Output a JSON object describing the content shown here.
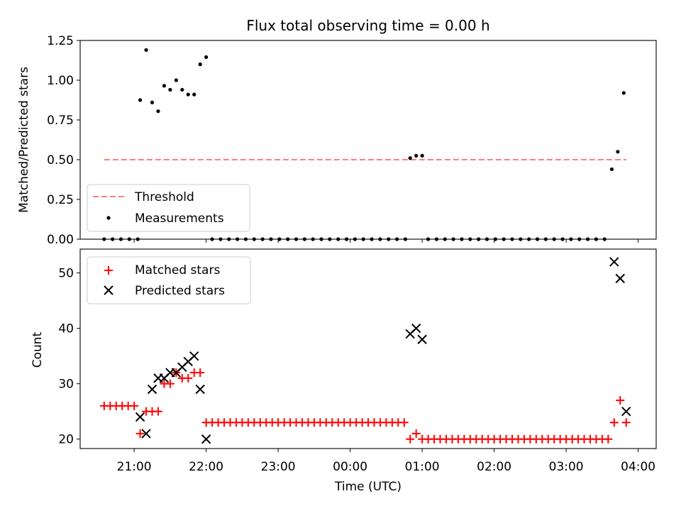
{
  "chart_data": [
    {
      "type": "scatter",
      "title": "Flux total observing time = 0.00 h",
      "ylabel": "Matched/Predicted stars",
      "xlabel": "",
      "ylim": [
        0,
        1.25
      ],
      "yticks": [
        "0.00",
        "0.25",
        "0.50",
        "0.75",
        "1.00",
        "1.25"
      ],
      "grid": false,
      "legend_position": "lower-left",
      "threshold": {
        "name": "Threshold",
        "value": 0.5,
        "x_start": "20:35",
        "x_end": "03:50",
        "color": "#ff7f7f"
      },
      "series": [
        {
          "name": "Measurements",
          "marker": "dot",
          "color": "#000000",
          "points": [
            [
              "20:35",
              0
            ],
            [
              "20:42",
              0
            ],
            [
              "20:49",
              0
            ],
            [
              "20:56",
              0
            ],
            [
              "21:03",
              0
            ],
            [
              "21:05",
              0.875
            ],
            [
              "21:10",
              1.19
            ],
            [
              "21:15",
              0.86
            ],
            [
              "21:20",
              0.805
            ],
            [
              "21:25",
              0.965
            ],
            [
              "21:30",
              0.94
            ],
            [
              "21:35",
              1.0
            ],
            [
              "21:40",
              0.94
            ],
            [
              "21:45",
              0.91
            ],
            [
              "21:50",
              0.91
            ],
            [
              "21:55",
              1.1
            ],
            [
              "22:00",
              1.145
            ],
            [
              "22:05",
              0
            ],
            [
              "22:12",
              0
            ],
            [
              "22:19",
              0
            ],
            [
              "22:26",
              0
            ],
            [
              "22:33",
              0
            ],
            [
              "22:40",
              0
            ],
            [
              "22:47",
              0
            ],
            [
              "22:54",
              0
            ],
            [
              "23:01",
              0
            ],
            [
              "23:08",
              0
            ],
            [
              "23:15",
              0
            ],
            [
              "23:22",
              0
            ],
            [
              "23:29",
              0
            ],
            [
              "23:36",
              0
            ],
            [
              "23:43",
              0
            ],
            [
              "23:50",
              0
            ],
            [
              "23:57",
              0
            ],
            [
              "00:04",
              0
            ],
            [
              "00:11",
              0
            ],
            [
              "00:18",
              0
            ],
            [
              "00:25",
              0
            ],
            [
              "00:32",
              0
            ],
            [
              "00:39",
              0
            ],
            [
              "00:46",
              0
            ],
            [
              "00:50",
              0.51
            ],
            [
              "00:55",
              0.525
            ],
            [
              "01:00",
              0.525
            ],
            [
              "01:05",
              0
            ],
            [
              "01:12",
              0
            ],
            [
              "01:19",
              0
            ],
            [
              "01:26",
              0
            ],
            [
              "01:33",
              0
            ],
            [
              "01:40",
              0
            ],
            [
              "01:47",
              0
            ],
            [
              "01:54",
              0
            ],
            [
              "02:01",
              0
            ],
            [
              "02:08",
              0
            ],
            [
              "02:15",
              0
            ],
            [
              "02:22",
              0
            ],
            [
              "02:29",
              0
            ],
            [
              "02:36",
              0
            ],
            [
              "02:43",
              0
            ],
            [
              "02:50",
              0
            ],
            [
              "02:57",
              0
            ],
            [
              "03:04",
              0
            ],
            [
              "03:11",
              0
            ],
            [
              "03:18",
              0
            ],
            [
              "03:25",
              0
            ],
            [
              "03:32",
              0
            ],
            [
              "03:38",
              0.44
            ],
            [
              "03:43",
              0.55
            ],
            [
              "03:48",
              0.92
            ]
          ]
        }
      ]
    },
    {
      "type": "scatter",
      "title": "",
      "xlabel": "Time (UTC)",
      "ylabel": "Count",
      "xlim": [
        "20:15",
        "04:15"
      ],
      "xticks": [
        "21:00",
        "22:00",
        "23:00",
        "00:00",
        "01:00",
        "02:00",
        "03:00",
        "04:00"
      ],
      "ylim": [
        18.3,
        54.3
      ],
      "yticks": [
        "20",
        "30",
        "40",
        "50"
      ],
      "grid": false,
      "legend_position": "upper-left",
      "series": [
        {
          "name": "Matched stars",
          "marker": "plus",
          "color": "#ff0000",
          "points": [
            [
              "20:35",
              26
            ],
            [
              "20:40",
              26
            ],
            [
              "20:45",
              26
            ],
            [
              "20:50",
              26
            ],
            [
              "20:55",
              26
            ],
            [
              "21:00",
              26
            ],
            [
              "21:05",
              21
            ],
            [
              "21:10",
              25
            ],
            [
              "21:15",
              25
            ],
            [
              "21:20",
              25
            ],
            [
              "21:25",
              30
            ],
            [
              "21:30",
              30
            ],
            [
              "21:35",
              32
            ],
            [
              "21:40",
              31
            ],
            [
              "21:45",
              31
            ],
            [
              "21:50",
              32
            ],
            [
              "21:55",
              32
            ],
            [
              "22:00",
              23
            ],
            [
              "22:05",
              23
            ],
            [
              "22:10",
              23
            ],
            [
              "22:15",
              23
            ],
            [
              "22:20",
              23
            ],
            [
              "22:25",
              23
            ],
            [
              "22:30",
              23
            ],
            [
              "22:35",
              23
            ],
            [
              "22:40",
              23
            ],
            [
              "22:45",
              23
            ],
            [
              "22:50",
              23
            ],
            [
              "22:55",
              23
            ],
            [
              "23:00",
              23
            ],
            [
              "23:05",
              23
            ],
            [
              "23:10",
              23
            ],
            [
              "23:15",
              23
            ],
            [
              "23:20",
              23
            ],
            [
              "23:25",
              23
            ],
            [
              "23:30",
              23
            ],
            [
              "23:35",
              23
            ],
            [
              "23:40",
              23
            ],
            [
              "23:45",
              23
            ],
            [
              "23:50",
              23
            ],
            [
              "23:55",
              23
            ],
            [
              "00:00",
              23
            ],
            [
              "00:05",
              23
            ],
            [
              "00:10",
              23
            ],
            [
              "00:15",
              23
            ],
            [
              "00:20",
              23
            ],
            [
              "00:25",
              23
            ],
            [
              "00:30",
              23
            ],
            [
              "00:35",
              23
            ],
            [
              "00:40",
              23
            ],
            [
              "00:45",
              23
            ],
            [
              "00:50",
              20
            ],
            [
              "00:55",
              21
            ],
            [
              "01:00",
              20
            ],
            [
              "01:05",
              20
            ],
            [
              "01:10",
              20
            ],
            [
              "01:15",
              20
            ],
            [
              "01:20",
              20
            ],
            [
              "01:25",
              20
            ],
            [
              "01:30",
              20
            ],
            [
              "01:35",
              20
            ],
            [
              "01:40",
              20
            ],
            [
              "01:45",
              20
            ],
            [
              "01:50",
              20
            ],
            [
              "01:55",
              20
            ],
            [
              "02:00",
              20
            ],
            [
              "02:05",
              20
            ],
            [
              "02:10",
              20
            ],
            [
              "02:15",
              20
            ],
            [
              "02:20",
              20
            ],
            [
              "02:25",
              20
            ],
            [
              "02:30",
              20
            ],
            [
              "02:35",
              20
            ],
            [
              "02:40",
              20
            ],
            [
              "02:45",
              20
            ],
            [
              "02:50",
              20
            ],
            [
              "02:55",
              20
            ],
            [
              "03:00",
              20
            ],
            [
              "03:05",
              20
            ],
            [
              "03:10",
              20
            ],
            [
              "03:15",
              20
            ],
            [
              "03:20",
              20
            ],
            [
              "03:25",
              20
            ],
            [
              "03:30",
              20
            ],
            [
              "03:35",
              20
            ],
            [
              "03:40",
              23
            ],
            [
              "03:45",
              27
            ],
            [
              "03:50",
              23
            ]
          ]
        },
        {
          "name": "Predicted stars",
          "marker": "x",
          "color": "#000000",
          "points": [
            [
              "21:05",
              24
            ],
            [
              "21:10",
              21
            ],
            [
              "21:15",
              29
            ],
            [
              "21:20",
              31
            ],
            [
              "21:25",
              31
            ],
            [
              "21:30",
              32
            ],
            [
              "21:35",
              32
            ],
            [
              "21:40",
              33
            ],
            [
              "21:45",
              34
            ],
            [
              "21:50",
              35
            ],
            [
              "21:55",
              29
            ],
            [
              "22:00",
              20
            ],
            [
              "00:50",
              39
            ],
            [
              "00:55",
              40
            ],
            [
              "01:00",
              38
            ],
            [
              "03:40",
              52
            ],
            [
              "03:45",
              49
            ],
            [
              "03:50",
              25
            ]
          ]
        }
      ]
    }
  ]
}
